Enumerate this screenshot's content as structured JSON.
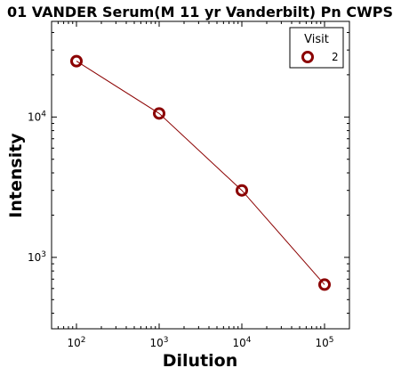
{
  "chart_data": {
    "type": "line",
    "title": "01 VANDER Serum(M 11 yr Vanderbilt) Pn CWPS",
    "xlabel": "Dilution",
    "ylabel": "Intensity",
    "x_scale": "log",
    "y_scale": "log",
    "xlim": [
      50,
      200000
    ],
    "ylim": [
      310,
      48000
    ],
    "x_ticks": [
      {
        "value": 100,
        "base": "10",
        "exp": "2"
      },
      {
        "value": 1000,
        "base": "10",
        "exp": "3"
      },
      {
        "value": 10000,
        "base": "10",
        "exp": "4"
      },
      {
        "value": 100000,
        "base": "10",
        "exp": "5"
      }
    ],
    "y_ticks": [
      {
        "value": 1000,
        "base": "10",
        "exp": "3"
      },
      {
        "value": 10000,
        "base": "10",
        "exp": "4"
      }
    ],
    "grid": false,
    "legend": {
      "title": "Visit",
      "position": "top-right"
    },
    "series": [
      {
        "name": "2",
        "color": "#8b0000",
        "marker": "open-circle",
        "x": [
          100,
          1000,
          10000,
          100000
        ],
        "y": [
          25000,
          10600,
          3000,
          640
        ]
      }
    ]
  }
}
